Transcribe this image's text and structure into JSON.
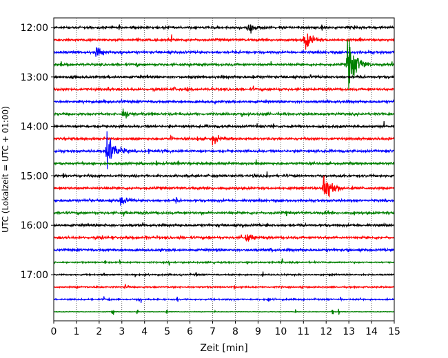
{
  "chart_data": {
    "type": "line",
    "title": "",
    "xlabel": "Zeit  [min]",
    "ylabel": "UTC (Lokalzeit = UTC + 01:00)",
    "xlim": [
      0,
      15
    ],
    "x_ticks": [
      "0",
      "1",
      "2",
      "3",
      "4",
      "5",
      "6",
      "7",
      "8",
      "9",
      "10",
      "11",
      "12",
      "13",
      "14",
      "15"
    ],
    "y_ticks": [
      {
        "label": "12:00",
        "trace": 0
      },
      {
        "label": "13:00",
        "trace": 4
      },
      {
        "label": "14:00",
        "trace": 8
      },
      {
        "label": "15:00",
        "trace": 12
      },
      {
        "label": "16:00",
        "trace": 16
      },
      {
        "label": "17:00",
        "trace": 20
      }
    ],
    "grid": {
      "x": true,
      "style": "dotted"
    },
    "trace_minutes": 15,
    "traces_count": 24,
    "colors": [
      "#000000",
      "#ff0000",
      "#0000ff",
      "#008000"
    ],
    "events": [
      {
        "trace": 0,
        "minute": 8.55,
        "amplitude": 0.55
      },
      {
        "trace": 1,
        "minute": 11.05,
        "amplitude": 0.8
      },
      {
        "trace": 3,
        "minute": 12.95,
        "amplitude": 2.2
      },
      {
        "trace": 10,
        "minute": 2.35,
        "amplitude": 1.8
      },
      {
        "trace": 13,
        "minute": 11.9,
        "amplitude": 1.5
      },
      {
        "trace": 2,
        "minute": 1.85,
        "amplitude": 0.45
      },
      {
        "trace": 9,
        "minute": 7.0,
        "amplitude": 0.45
      },
      {
        "trace": 7,
        "minute": 3.05,
        "amplitude": 0.5
      },
      {
        "trace": 14,
        "minute": 2.95,
        "amplitude": 0.45
      },
      {
        "trace": 17,
        "minute": 8.5,
        "amplitude": 0.45
      }
    ]
  }
}
